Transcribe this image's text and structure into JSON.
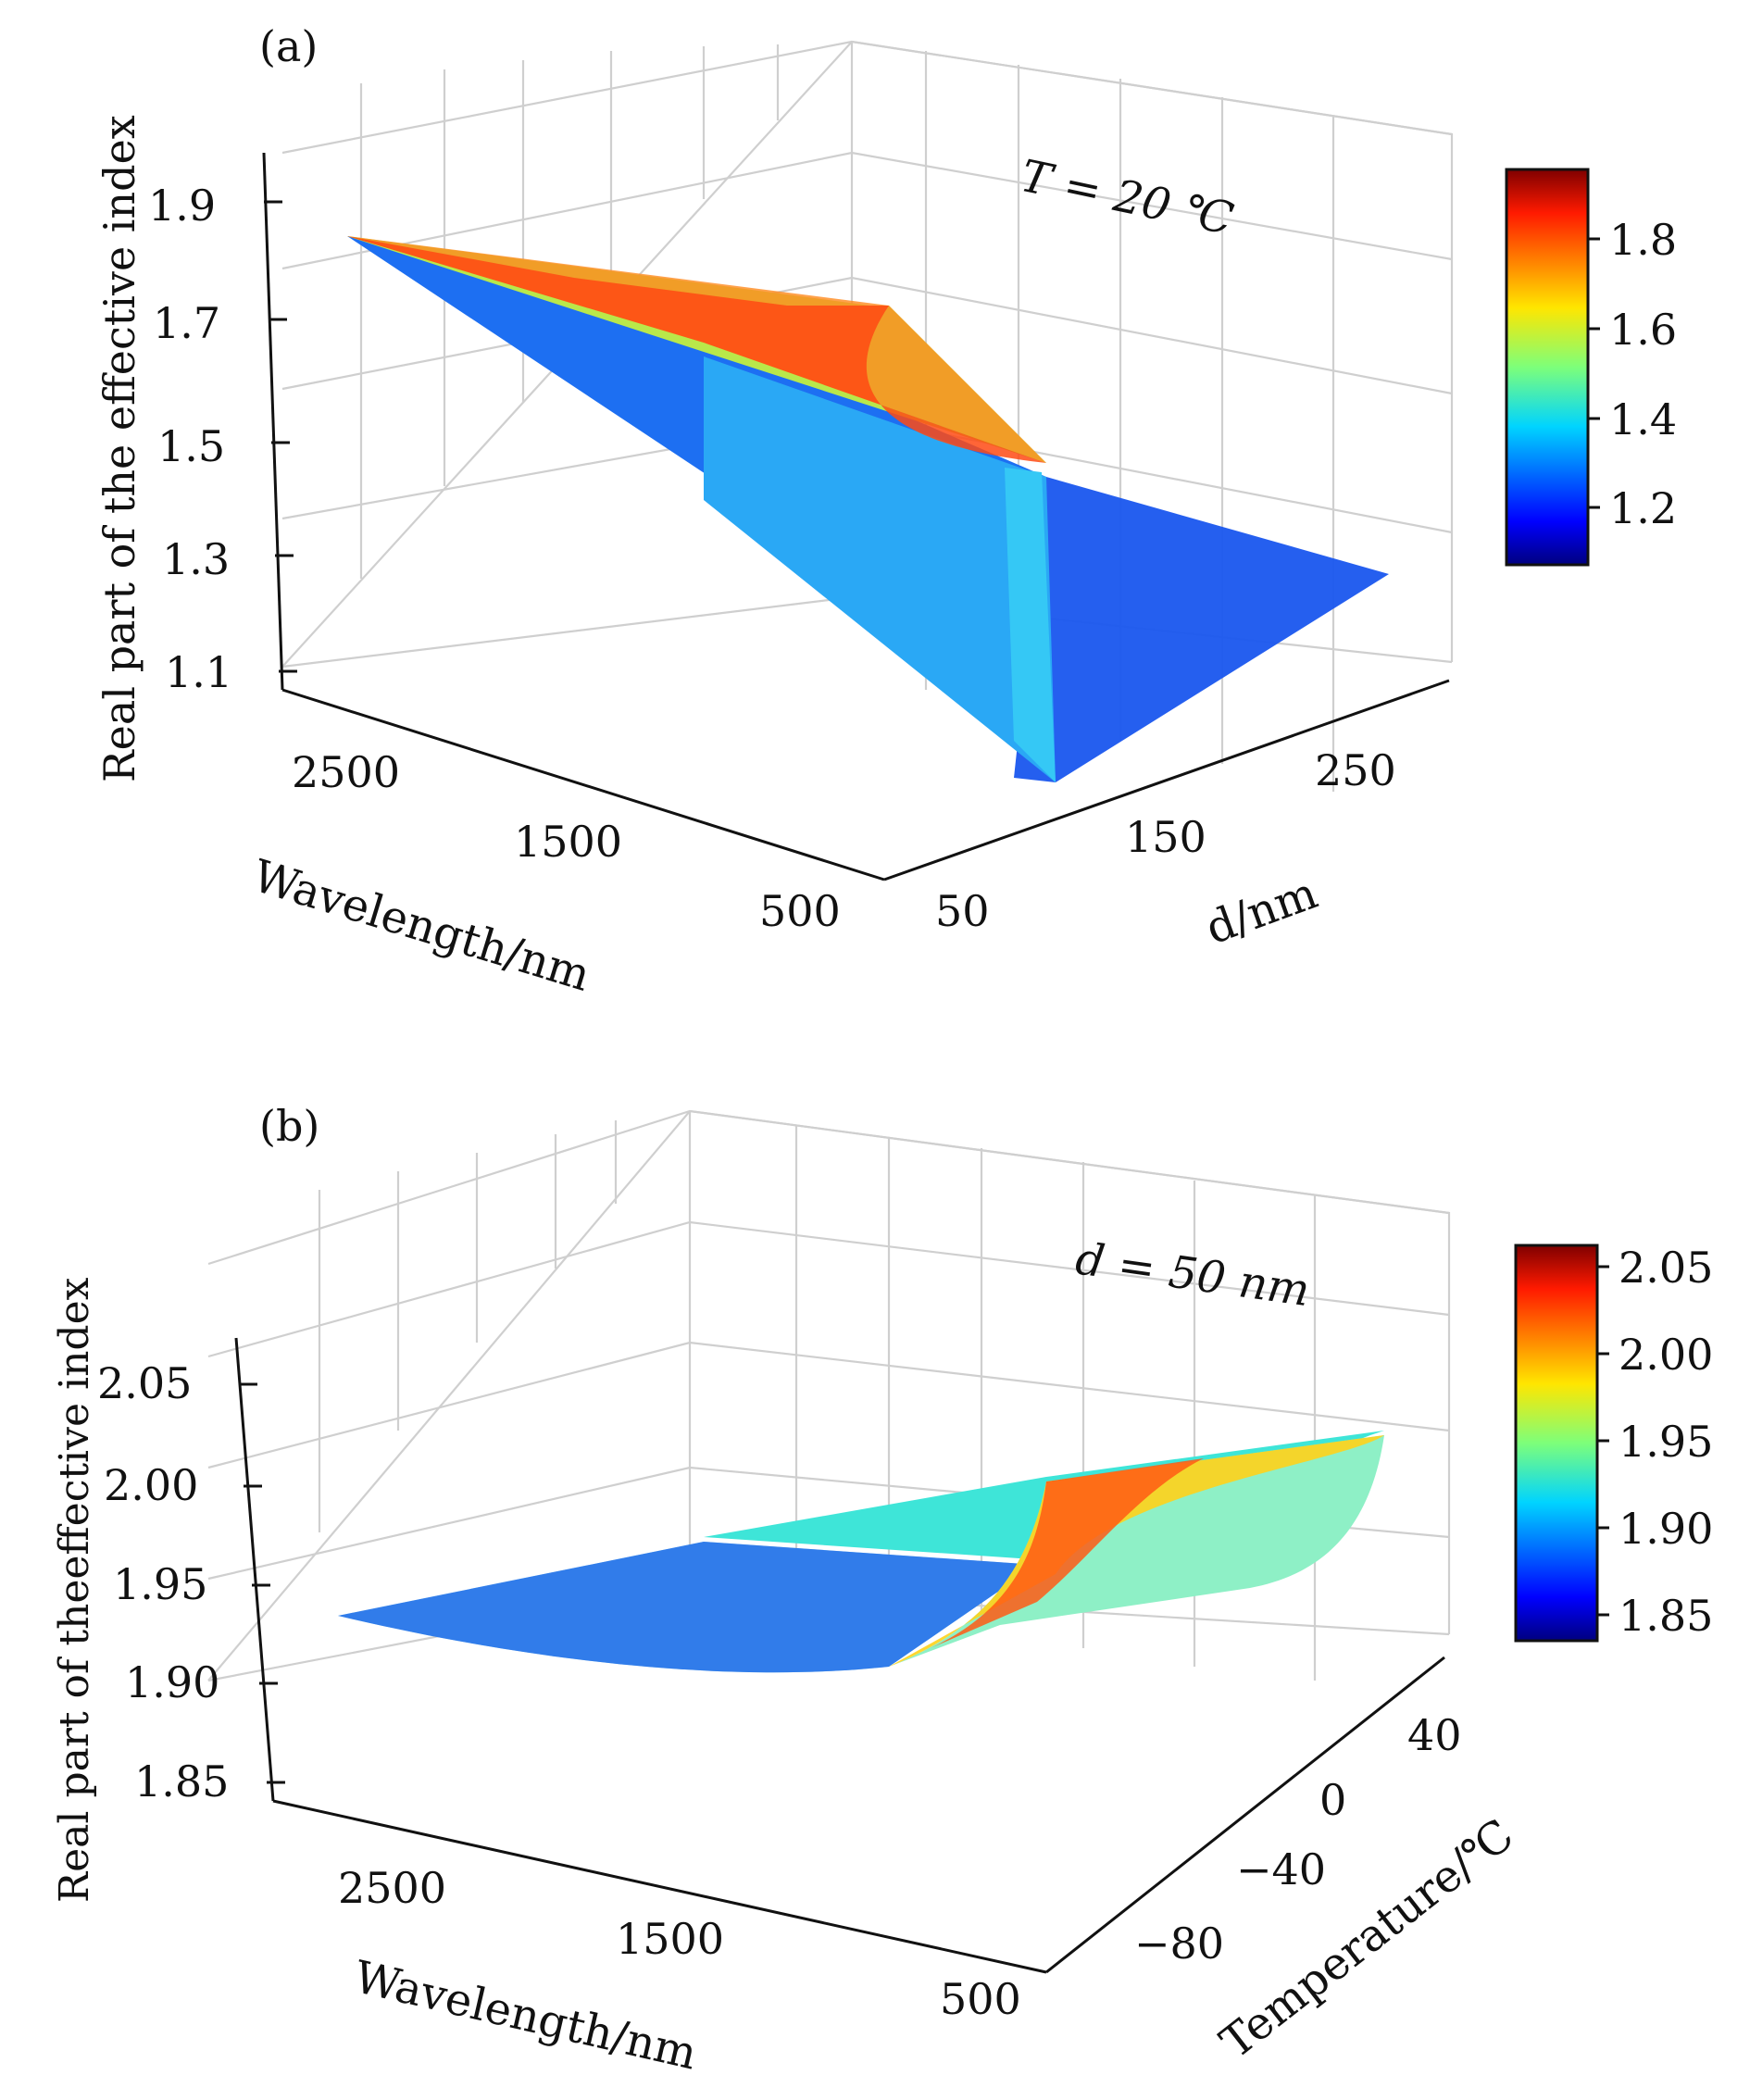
{
  "chart_data": [
    {
      "panel": "(a)",
      "type": "surface3d",
      "annotation": "T = 20 ℃",
      "xlabel": "Wavelength/nm",
      "ylabel": "d/nm",
      "zlabel": "Real part of the effective index",
      "x_ticks": [
        "2500",
        "1500",
        "500"
      ],
      "y_ticks": [
        "50",
        "150",
        "250"
      ],
      "z_ticks": [
        "1.9",
        "1.7",
        "1.5",
        "1.3",
        "1.1"
      ],
      "xlim": [
        300,
        3000
      ],
      "ylim": [
        20,
        300
      ],
      "zlim": [
        1.05,
        1.95
      ],
      "colorbar": {
        "ticks": [
          "1.8",
          "1.6",
          "1.4",
          "1.2"
        ],
        "range": [
          1.08,
          1.96
        ],
        "colormap": "jet"
      },
      "surface_description": "High branch rising toward long wavelength and small d (peak ≈1.86 at 2700 nm); step down at d ≈ 90 nm to a low branch ≈1.25–1.45"
    },
    {
      "panel": "(b)",
      "type": "surface3d",
      "annotation": "d = 50 nm",
      "xlabel": "Wavelength/nm",
      "ylabel": "Temperature/℃",
      "zlabel": "Real part of theeffective index",
      "x_ticks": [
        "2500",
        "1500",
        "500"
      ],
      "y_ticks": [
        "40",
        "0",
        "−40",
        "−80"
      ],
      "z_ticks": [
        "2.05",
        "2.00",
        "1.95",
        "1.90",
        "1.85"
      ],
      "xlim": [
        300,
        3000
      ],
      "ylim": [
        -100,
        60
      ],
      "zlim": [
        1.84,
        2.07
      ],
      "colorbar": {
        "ticks": [
          "2.05",
          "2.00",
          "1.95",
          "1.90",
          "1.85"
        ],
        "range": [
          1.83,
          2.06
        ],
        "colormap": "jet"
      },
      "surface_description": "Flat ≈1.87–1.92 over most wavelengths, rising sharply to ≈2.04 near 500 nm at low temperature"
    }
  ]
}
